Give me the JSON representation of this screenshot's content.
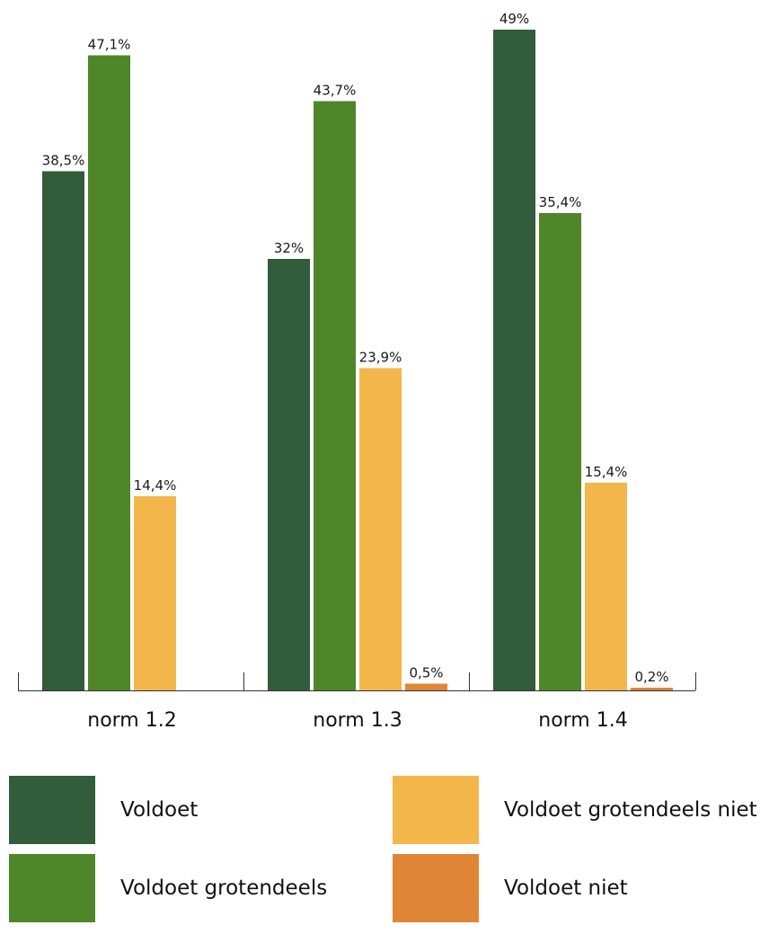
{
  "chart_data": {
    "type": "bar",
    "categories": [
      "norm 1.2",
      "norm 1.3",
      "norm 1.4"
    ],
    "series": [
      {
        "name": "Voldoet",
        "color": "#335c3b",
        "values": [
          38.5,
          32,
          49
        ],
        "labels": [
          "38,5%",
          "32%",
          "49%"
        ]
      },
      {
        "name": "Voldoet grotendeels",
        "color": "#4f8629",
        "values": [
          47.1,
          43.7,
          35.4
        ],
        "labels": [
          "47,1%",
          "43,7%",
          "35,4%"
        ]
      },
      {
        "name": "Voldoet grotendeels niet",
        "color": "#f2b64a",
        "values": [
          14.4,
          23.9,
          15.4
        ],
        "labels": [
          "14,4%",
          "23,9%",
          "15,4%"
        ]
      },
      {
        "name": "Voldoet niet",
        "color": "#df8636",
        "values": [
          null,
          0.5,
          0.2
        ],
        "labels": [
          null,
          "0,5%",
          "0,2%"
        ]
      }
    ],
    "ylim": [
      0,
      50
    ],
    "grid": false,
    "legend_position": "bottom"
  }
}
